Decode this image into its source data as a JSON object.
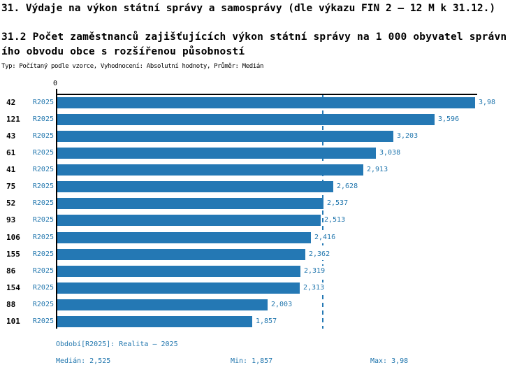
{
  "header": {
    "title": "31. Výdaje na výkon státní správy a samosprávy (dle výkazu FIN 2 – 12 M k 31.12.)",
    "subtitle_line1": "31.2 Počet zaměstnanců zajišťujících výkon státní správy na 1 000 obyvatel správn",
    "subtitle_line2": "ího obvodu obce s rozšířenou působností",
    "meta": "Typ: Počítaný podle vzorce, Vyhodnocení: Absolutní hodnoty, Průměr: Medián"
  },
  "colors": {
    "bar": "#2478b4",
    "accent_text": "#1f75ad",
    "axis": "#000000"
  },
  "chart_data": {
    "type": "bar",
    "orientation": "horizontal",
    "title": "31.2 Počet zaměstnanců zajišťujících výkon státní správy na 1 000 obyvatel správního obvodu obce s rozšířenou působností",
    "categories": [
      "42",
      "121",
      "43",
      "61",
      "41",
      "75",
      "52",
      "93",
      "106",
      "155",
      "86",
      "154",
      "88",
      "101"
    ],
    "series_label": "R2025",
    "values": [
      3.98,
      3.596,
      3.203,
      3.038,
      2.913,
      2.628,
      2.537,
      2.513,
      2.416,
      2.362,
      2.319,
      2.313,
      2.003,
      1.857
    ],
    "value_labels": [
      "3,98",
      "3,596",
      "3,203",
      "3,038",
      "2,913",
      "2,628",
      "2,537",
      "2,513",
      "2,416",
      "2,362",
      "2,319",
      "2,313",
      "2,003",
      "1,857"
    ],
    "xlim": [
      0,
      4.0
    ],
    "zero_tick_label": "0",
    "median_reference_line": 2.525,
    "grid": false,
    "legend_position": "none"
  },
  "footer": {
    "period": "Období[R2025]: Realita – 2025",
    "median": "Medián: 2,525",
    "min": "Min: 1,857",
    "max": "Max: 3,98"
  }
}
